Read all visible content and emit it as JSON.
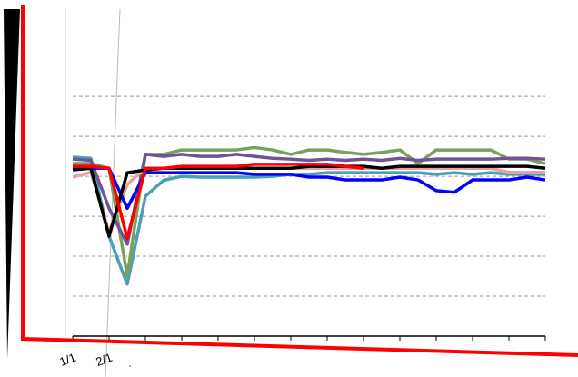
{
  "chart_data": {
    "type": "line",
    "categories": [
      "1/1",
      null,
      "2/1",
      null,
      null,
      null,
      null,
      null,
      null,
      null,
      null,
      null,
      null,
      null,
      null,
      null,
      null,
      null,
      null,
      null,
      null,
      null,
      null,
      null,
      null,
      null,
      null
    ],
    "ylim": [
      0,
      8.3
    ],
    "yticks": [
      1,
      2,
      3,
      4,
      5,
      6
    ],
    "grid": true,
    "series": [
      {
        "color": "#4aa0b5",
        "values": [
          4.48,
          4.45,
          2.5,
          1.3,
          3.5,
          3.9,
          4.0,
          3.98,
          3.98,
          3.98,
          3.98,
          4.0,
          4.05,
          4.05,
          4.09,
          4.09,
          4.09,
          4.09,
          4.09,
          4.09,
          4.05,
          4.09,
          4.05,
          4.09,
          4.05,
          4.05,
          4.05
        ]
      },
      {
        "color": "#7ba05b",
        "values": [
          4.32,
          4.32,
          4.2,
          1.5,
          4.55,
          4.55,
          4.66,
          4.66,
          4.66,
          4.66,
          4.72,
          4.66,
          4.55,
          4.66,
          4.66,
          4.6,
          4.55,
          4.6,
          4.66,
          4.32,
          4.66,
          4.66,
          4.66,
          4.66,
          4.43,
          4.43,
          4.32
        ]
      },
      {
        "color": "#6e5494",
        "values": [
          4.43,
          4.4,
          3.2,
          2.3,
          4.55,
          4.5,
          4.55,
          4.5,
          4.5,
          4.55,
          4.5,
          4.45,
          4.43,
          4.4,
          4.43,
          4.4,
          4.43,
          4.4,
          4.45,
          4.4,
          4.43,
          4.43,
          4.43,
          4.43,
          4.45,
          4.45,
          4.43
        ]
      },
      {
        "color": "#e8a0a0",
        "values": [
          3.98,
          4.1,
          2.6,
          3.8,
          4.2,
          4.2,
          4.2,
          4.2,
          4.2,
          4.2,
          4.2,
          4.2,
          4.2,
          4.2,
          4.2,
          4.2,
          4.2,
          4.2,
          4.2,
          4.2,
          4.2,
          4.2,
          4.2,
          4.2,
          4.1,
          4.1,
          4.1
        ]
      },
      {
        "color": "#0000ff",
        "values": [
          4.2,
          4.2,
          4.2,
          3.2,
          4.09,
          4.09,
          4.09,
          4.09,
          4.09,
          4.09,
          4.05,
          4.05,
          4.05,
          3.98,
          3.98,
          3.91,
          3.91,
          3.91,
          3.98,
          3.91,
          3.64,
          3.6,
          3.91,
          3.91,
          3.91,
          3.98,
          3.91
        ]
      },
      {
        "color": "#000000",
        "values": [
          4.16,
          4.2,
          2.5,
          4.09,
          4.16,
          4.2,
          4.2,
          4.2,
          4.2,
          4.2,
          4.2,
          4.2,
          4.2,
          4.25,
          4.25,
          4.25,
          4.25,
          4.2,
          4.25,
          4.25,
          4.25,
          4.25,
          4.25,
          4.25,
          4.25,
          4.25,
          4.2
        ]
      },
      {
        "color": "#ff0000",
        "values": [
          4.25,
          4.25,
          4.2,
          2.45,
          4.2,
          4.2,
          4.25,
          4.25,
          4.25,
          4.25,
          4.3,
          4.3,
          4.3,
          4.3,
          4.3,
          4.25,
          4.2,
          null,
          null,
          null,
          null,
          null,
          null,
          null,
          null,
          null,
          null
        ]
      }
    ]
  }
}
